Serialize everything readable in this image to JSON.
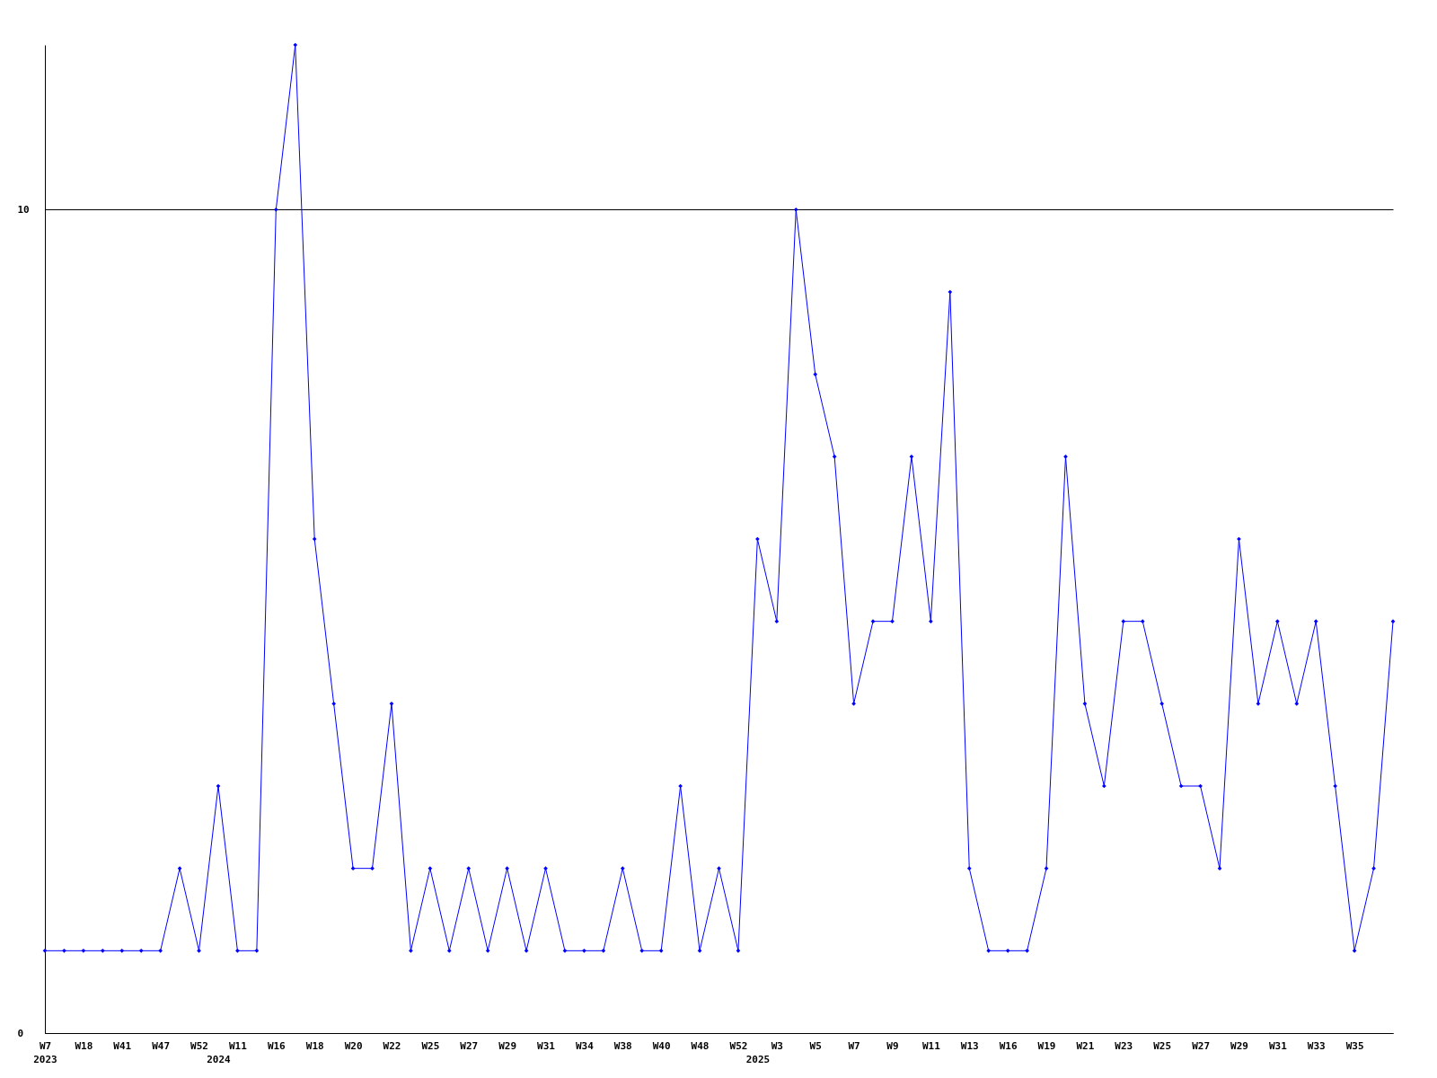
{
  "chart_data": {
    "type": "line",
    "categories": [
      "W7\n2023",
      null,
      "W18",
      null,
      "W41",
      null,
      "W47",
      null,
      "W52",
      "\n2024",
      "W11",
      null,
      "W16",
      null,
      "W18",
      null,
      "W20",
      null,
      "W22",
      null,
      "W25",
      null,
      "W27",
      null,
      "W29",
      null,
      "W31",
      null,
      "W34",
      null,
      "W38",
      null,
      "W40",
      null,
      "W48",
      null,
      "W52",
      "\n2025",
      "W3",
      null,
      "W5",
      null,
      "W7",
      null,
      "W9",
      null,
      "W11",
      null,
      "W13",
      null,
      "W16",
      null,
      "W19",
      null,
      "W21",
      null,
      "W23",
      null,
      "W25",
      null,
      "W27",
      null,
      "W29",
      null,
      "W31",
      null,
      "W33",
      null,
      "W35",
      null,
      null
    ],
    "series": [
      {
        "color": "#0000ff",
        "values": [
          1,
          1,
          1,
          1,
          1,
          1,
          1,
          2,
          1,
          3,
          1,
          1,
          10,
          12,
          6,
          4,
          2,
          2,
          4,
          1,
          2,
          1,
          2,
          1,
          2,
          1,
          2,
          1,
          1,
          1,
          2,
          1,
          1,
          3,
          1,
          2,
          1,
          6,
          5,
          10,
          8,
          7,
          4,
          5,
          5,
          7,
          5,
          9,
          2,
          1,
          1,
          1,
          2,
          7,
          4,
          3,
          5,
          5,
          4,
          3,
          3,
          2,
          6,
          4,
          5,
          4,
          5,
          3,
          1,
          2,
          5
        ]
      }
    ],
    "ylim": [
      0,
      12
    ],
    "yticks": [
      0,
      10
    ],
    "grid": "y",
    "marker": "diamond",
    "line_style": "solid"
  }
}
